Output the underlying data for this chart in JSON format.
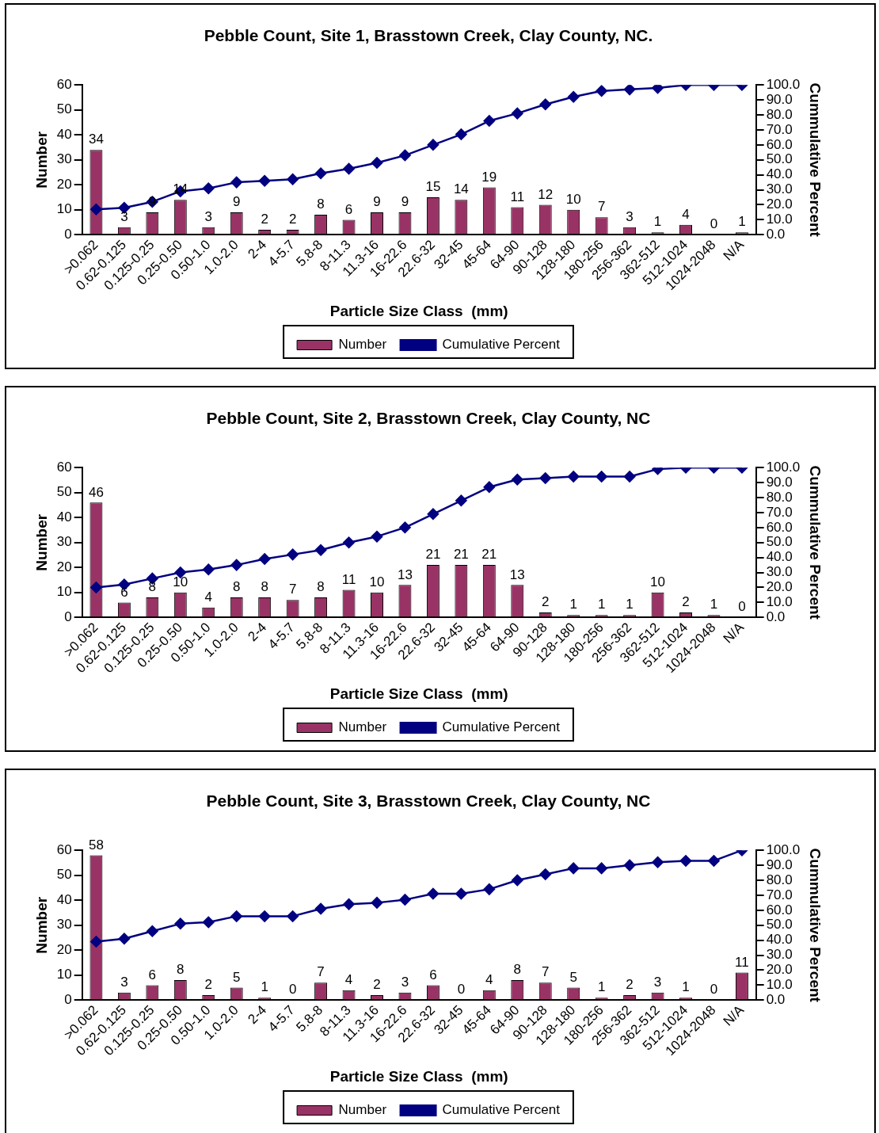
{
  "chart_data": [
    {
      "type": "bar",
      "title": "Pebble Count, Site 1, Brasstown Creek, Clay County, NC.",
      "xlabel": "Particle Size Class  (mm)",
      "ylabel": "Number",
      "y2label": "Cummulative Percent",
      "categories": [
        ">0.062",
        "0.62-0.125",
        "0.125-0.25",
        "0.25-0.50",
        "0.50-1.0",
        "1.0-2.0",
        "2-4",
        "4-5.7",
        "5.8-8",
        "8-11.3",
        "11.3-16",
        "16-22.6",
        "22.6-32",
        "32-45",
        "45-64",
        "64-90",
        "90-128",
        "128-180",
        "180-256",
        "256-362",
        "362-512",
        "512-1024",
        "1024-2048",
        "N/A"
      ],
      "series": [
        {
          "name": "Number",
          "color": "#993366",
          "values": [
            34,
            3,
            9,
            14,
            3,
            9,
            2,
            2,
            8,
            6,
            9,
            9,
            15,
            14,
            19,
            11,
            12,
            10,
            7,
            3,
            1,
            4,
            0,
            1
          ],
          "value_labels": [
            "34",
            "3",
            "9",
            "14",
            "3",
            "9",
            "2",
            "2",
            "8",
            "6",
            "9",
            "9",
            "15",
            "14",
            "19",
            "11",
            "12",
            "10",
            "7",
            "3",
            "1",
            "4",
            "0",
            "1"
          ]
        },
        {
          "type": "line",
          "name": "Cumulative Percent",
          "color": "#000080",
          "axis": "y2",
          "values": [
            17,
            18,
            22,
            29,
            31,
            35,
            36,
            37,
            41,
            44,
            48,
            53,
            60,
            67,
            76,
            81,
            87,
            92,
            96,
            97,
            98,
            100,
            100,
            100
          ]
        }
      ],
      "ylim": [
        0,
        60
      ],
      "yticks": [
        0,
        10,
        20,
        30,
        40,
        50,
        60
      ],
      "y2lim": [
        0,
        100
      ],
      "y2ticks": [
        {
          "value": 0,
          "label": "0.0"
        },
        {
          "value": 10,
          "label": "10.0"
        },
        {
          "value": 20,
          "label": "20.0"
        },
        {
          "value": 30,
          "label": "30.0"
        },
        {
          "value": 40,
          "label": "40.0"
        },
        {
          "value": 50,
          "label": "50.0"
        },
        {
          "value": 60,
          "label": "60.0"
        },
        {
          "value": 70,
          "label": "70.0"
        },
        {
          "value": 80,
          "label": "80.0"
        },
        {
          "value": 90,
          "label": "90.0"
        },
        {
          "value": 100,
          "label": "100.0"
        }
      ],
      "marker": "diamond",
      "legend": "bottom",
      "grid": false
    },
    {
      "type": "bar",
      "title": "Pebble Count, Site 2, Brasstown Creek, Clay County, NC",
      "xlabel": "Particle Size Class  (mm)",
      "ylabel": "Number",
      "y2label": "Cummulative Percent",
      "categories": [
        ">0.062",
        "0.62-0.125",
        "0.125-0.25",
        "0.25-0.50",
        "0.50-1.0",
        "1.0-2.0",
        "2-4",
        "4-5.7",
        "5.8-8",
        "8-11.3",
        "11.3-16",
        "16-22.6",
        "22.6-32",
        "32-45",
        "45-64",
        "64-90",
        "90-128",
        "128-180",
        "180-256",
        "256-362",
        "362-512",
        "512-1024",
        "1024-2048",
        "N/A"
      ],
      "series": [
        {
          "name": "Number",
          "color": "#993366",
          "values": [
            46,
            6,
            8,
            10,
            4,
            8,
            8,
            7,
            8,
            11,
            10,
            13,
            21,
            21,
            21,
            13,
            2,
            1,
            1,
            1,
            10,
            2,
            1,
            0
          ],
          "value_labels": [
            "46",
            "6",
            "8",
            "10",
            "4",
            "8",
            "8",
            "7",
            "8",
            "11",
            "10",
            "13",
            "21",
            "21",
            "21",
            "13",
            "2",
            "1",
            "1",
            "1",
            "10",
            "2",
            "1",
            "0"
          ]
        },
        {
          "type": "line",
          "name": "Cumulative Percent",
          "color": "#000080",
          "axis": "y2",
          "values": [
            20,
            22,
            26,
            30,
            32,
            35,
            39,
            42,
            45,
            50,
            54,
            60,
            69,
            78,
            87,
            92,
            93,
            94,
            94,
            94,
            99,
            100,
            100,
            100
          ]
        }
      ],
      "ylim": [
        0,
        60
      ],
      "yticks": [
        0,
        10,
        20,
        30,
        40,
        50,
        60
      ],
      "y2lim": [
        0,
        100
      ],
      "y2ticks": [
        {
          "value": 0,
          "label": "0.0"
        },
        {
          "value": 10,
          "label": "10.0"
        },
        {
          "value": 20,
          "label": "20.0"
        },
        {
          "value": 30,
          "label": "30.0"
        },
        {
          "value": 40,
          "label": "40.0"
        },
        {
          "value": 50,
          "label": "50.0"
        },
        {
          "value": 60,
          "label": "60.0"
        },
        {
          "value": 70,
          "label": "70.0"
        },
        {
          "value": 80,
          "label": "80.0"
        },
        {
          "value": 90,
          "label": "90.0"
        },
        {
          "value": 100,
          "label": "100.0"
        }
      ],
      "marker": "diamond",
      "legend": "bottom",
      "grid": false
    },
    {
      "type": "bar",
      "title": "Pebble Count, Site 3, Brasstown Creek, Clay County, NC",
      "xlabel": "Particle Size Class  (mm)",
      "ylabel": "Number",
      "y2label": "Cummulative Percent",
      "categories": [
        ">0.062",
        "0.62-0.125",
        "0.125-0.25",
        "0.25-0.50",
        "0.50-1.0",
        "1.0-2.0",
        "2-4",
        "4-5.7",
        "5.8-8",
        "8-11.3",
        "11.3-16",
        "16-22.6",
        "22.6-32",
        "32-45",
        "45-64",
        "64-90",
        "90-128",
        "128-180",
        "180-256",
        "256-362",
        "362-512",
        "512-1024",
        "1024-2048",
        "N/A"
      ],
      "series": [
        {
          "name": "Number",
          "color": "#993366",
          "values": [
            58,
            3,
            6,
            8,
            2,
            5,
            1,
            0,
            7,
            4,
            2,
            3,
            6,
            0,
            4,
            8,
            7,
            5,
            1,
            2,
            3,
            1,
            0,
            11
          ],
          "value_labels": [
            "58",
            "3",
            "6",
            "8",
            "2",
            "5",
            "1",
            "0",
            "7",
            "4",
            "2",
            "3",
            "6",
            "0",
            "4",
            "8",
            "7",
            "5",
            "1",
            "2",
            "3",
            "1",
            "0",
            "11"
          ]
        },
        {
          "type": "line",
          "name": "Cumulative Percent",
          "color": "#000080",
          "axis": "y2",
          "values": [
            39,
            41,
            46,
            51,
            52,
            56,
            56,
            56,
            61,
            64,
            65,
            67,
            71,
            71,
            74,
            80,
            84,
            88,
            88,
            90,
            92,
            93,
            93,
            100
          ]
        }
      ],
      "ylim": [
        0,
        60
      ],
      "yticks": [
        0,
        10,
        20,
        30,
        40,
        50,
        60
      ],
      "y2lim": [
        0,
        100
      ],
      "y2ticks": [
        {
          "value": 0,
          "label": "0.0"
        },
        {
          "value": 10,
          "label": "10.0"
        },
        {
          "value": 20,
          "label": "20.0"
        },
        {
          "value": 30,
          "label": "30.0"
        },
        {
          "value": 40,
          "label": "40.0"
        },
        {
          "value": 50,
          "label": "50.0"
        },
        {
          "value": 60,
          "label": "60.0"
        },
        {
          "value": 70,
          "label": "70.0"
        },
        {
          "value": 80,
          "label": "80.0"
        },
        {
          "value": 90,
          "label": "90.0"
        },
        {
          "value": 100,
          "label": "100.0"
        }
      ],
      "marker": "diamond",
      "legend": "bottom",
      "grid": false
    }
  ]
}
